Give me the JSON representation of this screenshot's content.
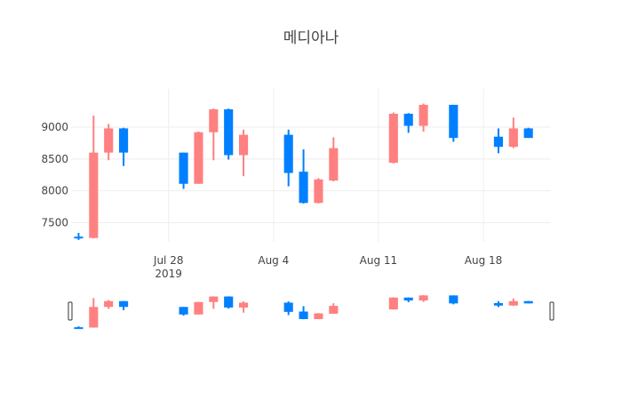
{
  "chart_data": {
    "type": "candlestick",
    "title": "메디아나",
    "xlabel": "",
    "ylabel": "",
    "y_ticks": [
      7500,
      8000,
      8500,
      9000
    ],
    "ylim": [
      7200,
      9600
    ],
    "x_ticks": [
      {
        "date": "2019-07-28",
        "label": "Jul 28",
        "sublabel": "2019"
      },
      {
        "date": "2019-08-04",
        "label": "Aug 4",
        "sublabel": ""
      },
      {
        "date": "2019-08-11",
        "label": "Aug 11",
        "sublabel": ""
      },
      {
        "date": "2019-08-18",
        "label": "Aug 18",
        "sublabel": ""
      }
    ],
    "xlim": [
      "2019-07-22",
      "2019-08-22"
    ],
    "grid": true,
    "rangeslider": true,
    "increasing_color": "#ff8080",
    "decreasing_color": "#0080ff",
    "candles": [
      {
        "date": "2019-07-22",
        "open": 7280,
        "high": 7340,
        "low": 7230,
        "close": 7260
      },
      {
        "date": "2019-07-23",
        "open": 7260,
        "high": 9180,
        "low": 7250,
        "close": 8600
      },
      {
        "date": "2019-07-24",
        "open": 8600,
        "high": 9050,
        "low": 8480,
        "close": 8980
      },
      {
        "date": "2019-07-25",
        "open": 8980,
        "high": 8990,
        "low": 8390,
        "close": 8600
      },
      {
        "date": "2019-07-29",
        "open": 8600,
        "high": 8600,
        "low": 8030,
        "close": 8110
      },
      {
        "date": "2019-07-30",
        "open": 8110,
        "high": 8930,
        "low": 8110,
        "close": 8920
      },
      {
        "date": "2019-07-31",
        "open": 8920,
        "high": 9290,
        "low": 8480,
        "close": 9280
      },
      {
        "date": "2019-08-01",
        "open": 9280,
        "high": 9290,
        "low": 8490,
        "close": 8560
      },
      {
        "date": "2019-08-02",
        "open": 8560,
        "high": 8960,
        "low": 8230,
        "close": 8880
      },
      {
        "date": "2019-08-05",
        "open": 8880,
        "high": 8960,
        "low": 8070,
        "close": 8280
      },
      {
        "date": "2019-08-06",
        "open": 8300,
        "high": 8650,
        "low": 7800,
        "close": 7810
      },
      {
        "date": "2019-08-07",
        "open": 7810,
        "high": 8200,
        "low": 7800,
        "close": 8180
      },
      {
        "date": "2019-08-08",
        "open": 8160,
        "high": 8840,
        "low": 8150,
        "close": 8670
      },
      {
        "date": "2019-08-12",
        "open": 8440,
        "high": 9230,
        "low": 8430,
        "close": 9210
      },
      {
        "date": "2019-08-13",
        "open": 9210,
        "high": 9220,
        "low": 8910,
        "close": 9020
      },
      {
        "date": "2019-08-14",
        "open": 9020,
        "high": 9370,
        "low": 8930,
        "close": 9350
      },
      {
        "date": "2019-08-16",
        "open": 9350,
        "high": 9350,
        "low": 8770,
        "close": 8830
      },
      {
        "date": "2019-08-19",
        "open": 8850,
        "high": 8980,
        "low": 8590,
        "close": 8690
      },
      {
        "date": "2019-08-20",
        "open": 8690,
        "high": 9150,
        "low": 8670,
        "close": 8980
      },
      {
        "date": "2019-08-21",
        "open": 8980,
        "high": 8990,
        "low": 8830,
        "close": 8830
      }
    ]
  }
}
